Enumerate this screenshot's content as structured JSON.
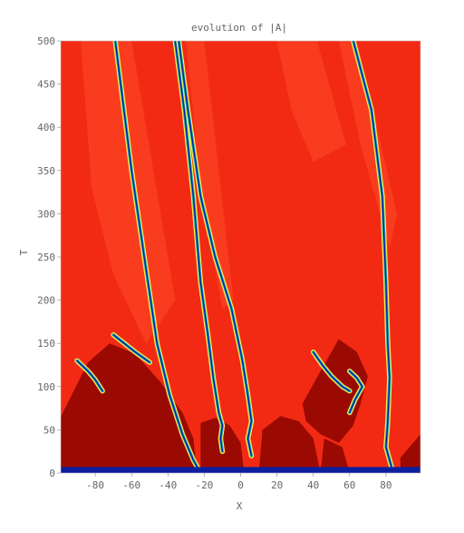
{
  "chart_data": {
    "type": "heatmap",
    "title": "evolution of |A|",
    "xlabel": "X",
    "ylabel": "T",
    "xlim": [
      -99,
      99
    ],
    "ylim": [
      0,
      500
    ],
    "xticks": [
      -80,
      -60,
      -40,
      -20,
      0,
      20,
      40,
      60,
      80
    ],
    "yticks": [
      0,
      50,
      100,
      150,
      200,
      250,
      300,
      350,
      400,
      450,
      500
    ],
    "grid": false,
    "legend": "none",
    "colors": {
      "background": "#f22a14",
      "dark_domain": "#9a0a02",
      "light_band": "#ff4a26",
      "defect_outer": "#fff04a",
      "defect_mid": "#1bb0b0",
      "defect_core": "#0a1aa8",
      "bottom_band": "#0b1f9e"
    },
    "defect_lines": [
      {
        "points": [
          [
            -69,
            500
          ],
          [
            -66,
            450
          ],
          [
            -60,
            350
          ],
          [
            -53,
            250
          ],
          [
            -46,
            150
          ],
          [
            -39,
            90
          ],
          [
            -32,
            45
          ],
          [
            -26,
            15
          ],
          [
            -22,
            0
          ]
        ]
      },
      {
        "points": [
          [
            -36,
            500
          ],
          [
            -31,
            420
          ],
          [
            -26,
            320
          ],
          [
            -22,
            220
          ],
          [
            -18,
            160
          ],
          [
            -15,
            110
          ],
          [
            -12,
            70
          ],
          [
            -10,
            55
          ],
          [
            -11,
            40
          ],
          [
            -10,
            25
          ]
        ]
      },
      {
        "points": [
          [
            -34,
            500
          ],
          [
            -29,
            420
          ],
          [
            -22,
            320
          ],
          [
            -14,
            250
          ],
          [
            -5,
            190
          ],
          [
            1,
            130
          ],
          [
            4,
            90
          ],
          [
            6,
            60
          ],
          [
            4,
            40
          ],
          [
            6,
            20
          ]
        ]
      },
      {
        "points": [
          [
            62,
            500
          ],
          [
            72,
            420
          ],
          [
            78,
            320
          ],
          [
            80,
            220
          ],
          [
            81,
            150
          ],
          [
            82,
            110
          ],
          [
            81,
            60
          ],
          [
            80,
            30
          ],
          [
            82,
            15
          ],
          [
            84,
            0
          ]
        ]
      },
      {
        "points": [
          [
            60,
            70
          ],
          [
            63,
            85
          ],
          [
            67,
            100
          ],
          [
            64,
            110
          ],
          [
            60,
            118
          ]
        ]
      },
      {
        "points": [
          [
            40,
            140
          ],
          [
            45,
            125
          ],
          [
            50,
            112
          ],
          [
            56,
            100
          ],
          [
            60,
            95
          ]
        ]
      },
      {
        "points": [
          [
            -90,
            130
          ],
          [
            -84,
            118
          ],
          [
            -80,
            108
          ],
          [
            -76,
            95
          ]
        ]
      },
      {
        "points": [
          [
            -70,
            160
          ],
          [
            -64,
            150
          ],
          [
            -58,
            140
          ],
          [
            -50,
            128
          ]
        ]
      }
    ],
    "dark_regions": [
      {
        "points": [
          [
            -99,
            0
          ],
          [
            -99,
            65
          ],
          [
            -84,
            128
          ],
          [
            -72,
            150
          ],
          [
            -58,
            138
          ],
          [
            -44,
            105
          ],
          [
            -32,
            70
          ],
          [
            -26,
            40
          ],
          [
            -24,
            0
          ]
        ]
      },
      {
        "points": [
          [
            -22,
            0
          ],
          [
            -22,
            58
          ],
          [
            -14,
            64
          ],
          [
            -6,
            55
          ],
          [
            0,
            35
          ],
          [
            2,
            0
          ]
        ]
      },
      {
        "points": [
          [
            10,
            0
          ],
          [
            12,
            50
          ],
          [
            22,
            66
          ],
          [
            32,
            60
          ],
          [
            40,
            40
          ],
          [
            44,
            0
          ]
        ]
      },
      {
        "points": [
          [
            34,
            80
          ],
          [
            44,
            118
          ],
          [
            54,
            155
          ],
          [
            64,
            140
          ],
          [
            70,
            112
          ],
          [
            66,
            80
          ],
          [
            62,
            55
          ],
          [
            54,
            35
          ],
          [
            44,
            45
          ],
          [
            36,
            60
          ]
        ]
      },
      {
        "points": [
          [
            44,
            0
          ],
          [
            46,
            40
          ],
          [
            56,
            30
          ],
          [
            60,
            0
          ]
        ]
      },
      {
        "points": [
          [
            88,
            0
          ],
          [
            88,
            18
          ],
          [
            99,
            45
          ],
          [
            99,
            0
          ]
        ]
      }
    ],
    "light_bands": [
      {
        "points": [
          [
            -88,
            500
          ],
          [
            -60,
            500
          ],
          [
            -44,
            300
          ],
          [
            -36,
            200
          ],
          [
            -52,
            150
          ],
          [
            -70,
            230
          ],
          [
            -82,
            330
          ]
        ]
      },
      {
        "points": [
          [
            -30,
            500
          ],
          [
            -20,
            500
          ],
          [
            -4,
            200
          ],
          [
            -10,
            190
          ],
          [
            -22,
            330
          ]
        ]
      },
      {
        "points": [
          [
            54,
            500
          ],
          [
            64,
            500
          ],
          [
            86,
            300
          ],
          [
            82,
            260
          ],
          [
            66,
            380
          ]
        ]
      },
      {
        "points": [
          [
            20,
            500
          ],
          [
            42,
            500
          ],
          [
            58,
            380
          ],
          [
            40,
            360
          ],
          [
            28,
            420
          ]
        ]
      }
    ]
  }
}
